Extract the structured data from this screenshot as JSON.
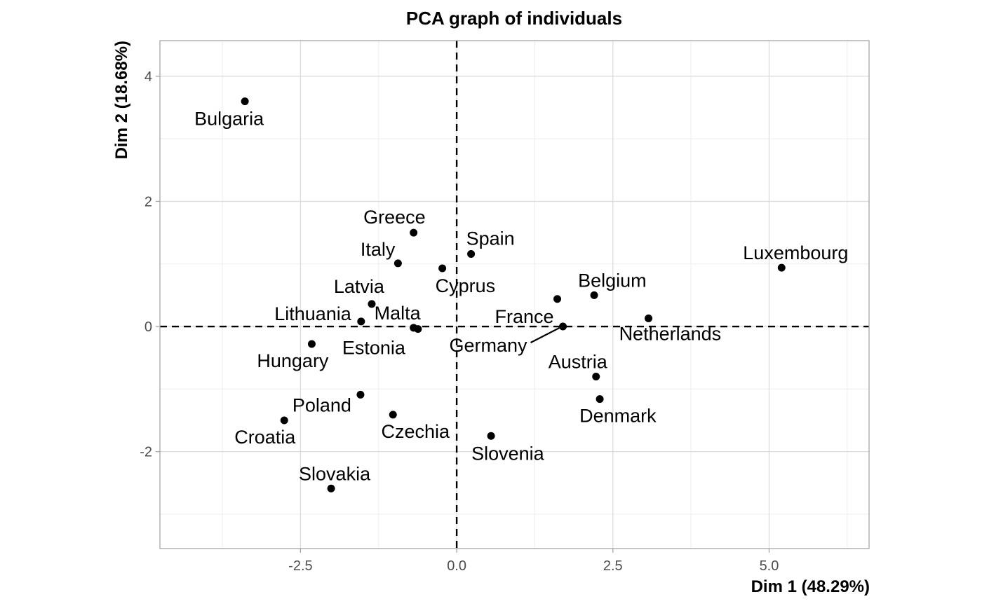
{
  "chart_data": {
    "type": "scatter",
    "title": "PCA graph of individuals",
    "xlabel": "Dim 1 (48.29%)",
    "ylabel": "Dim 2 (18.68%)",
    "xlim": [
      -4.75,
      6.6
    ],
    "ylim": [
      -3.55,
      4.57
    ],
    "x_ticks": [
      -2.5,
      0.0,
      2.5,
      5.0
    ],
    "x_tick_labels": [
      "-2.5",
      "0.0",
      "2.5",
      "5.0"
    ],
    "y_ticks": [
      -2,
      0,
      2,
      4
    ],
    "y_tick_labels": [
      "-2",
      "0",
      "2",
      "4"
    ],
    "grid": true,
    "reference_lines": {
      "x": 0,
      "y": 0,
      "style": "dashed"
    },
    "points": [
      {
        "label": "Bulgaria",
        "x": -3.39,
        "y": 3.6,
        "label_side": "below-left"
      },
      {
        "label": "Greece",
        "x": -0.69,
        "y": 1.5,
        "label_side": "above-left"
      },
      {
        "label": "Italy",
        "x": -0.94,
        "y": 1.01,
        "label_side": "above-left"
      },
      {
        "label": "Cyprus",
        "x": -0.23,
        "y": 0.93,
        "label_side": "below-right"
      },
      {
        "label": "Spain",
        "x": 0.23,
        "y": 1.16,
        "label_side": "above-right"
      },
      {
        "label": "Latvia",
        "x": -1.36,
        "y": 0.36,
        "label_side": "above-left"
      },
      {
        "label": "Lithuania",
        "x": -1.53,
        "y": 0.08,
        "label_side": "above-left"
      },
      {
        "label": "Malta",
        "x": -0.69,
        "y": -0.02,
        "label_side": "above-left"
      },
      {
        "label": "Estonia",
        "x": -0.62,
        "y": -0.04,
        "label_side": "below-left"
      },
      {
        "label": "Hungary",
        "x": -2.32,
        "y": -0.28,
        "label_side": "below-left"
      },
      {
        "label": "Poland",
        "x": -1.54,
        "y": -1.09,
        "label_side": "below-left"
      },
      {
        "label": "Croatia",
        "x": -2.76,
        "y": -1.5,
        "label_side": "below-left"
      },
      {
        "label": "Czechia",
        "x": -1.02,
        "y": -1.41,
        "label_side": "below"
      },
      {
        "label": "Slovakia",
        "x": -2.01,
        "y": -2.59,
        "label_side": "above"
      },
      {
        "label": "Slovenia",
        "x": 0.55,
        "y": -1.75,
        "label_side": "below-right"
      },
      {
        "label": "France",
        "x": 1.61,
        "y": 0.44,
        "label_side": "below-left"
      },
      {
        "label": "Belgium",
        "x": 2.2,
        "y": 0.5,
        "label_side": "above-right"
      },
      {
        "label": "Germany",
        "x": 1.7,
        "y": 0.0,
        "label_side": "below-left"
      },
      {
        "label": "Netherlands",
        "x": 3.07,
        "y": 0.13,
        "label_side": "below-right"
      },
      {
        "label": "Austria",
        "x": 2.23,
        "y": -0.8,
        "label_side": "above-left"
      },
      {
        "label": "Denmark",
        "x": 2.29,
        "y": -1.16,
        "label_side": "below-right"
      },
      {
        "label": "Luxembourg",
        "x": 5.2,
        "y": 0.94,
        "label_side": "above-right"
      }
    ]
  }
}
